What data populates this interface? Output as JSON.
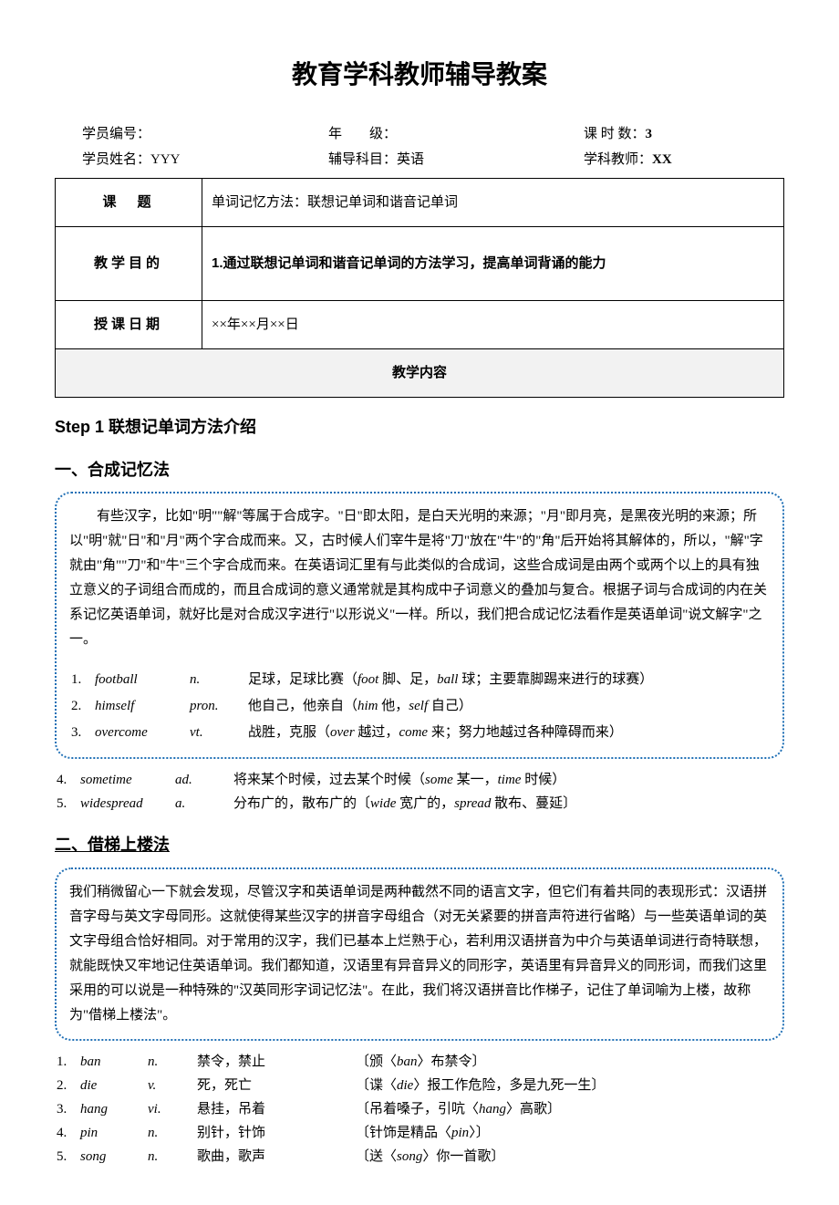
{
  "title": "教育学科教师辅导教案",
  "header": {
    "student_id_label": "学员编号：",
    "student_name_label": "学员姓名：",
    "student_name": "YYY",
    "grade_label": "年　　级：",
    "subject_label": "辅导科目：",
    "subject": "英语",
    "hours_label": "课 时 数：",
    "hours": "3",
    "teacher_label": "学科教师：",
    "teacher": "XX"
  },
  "meta": {
    "topic_label": "课　题",
    "topic": "单词记忆方法：联想记单词和谐音记单词",
    "goal_label": "教学目的",
    "goal": "1.通过联想记单词和谐音记单词的方法学习，提高单词背诵的能力",
    "date_label": "授课日期",
    "date": "××年××月××日",
    "content_header": "教学内容"
  },
  "step1": {
    "head_prefix": "Step 1",
    "head_text": " 联想记单词方法介绍"
  },
  "section1": {
    "head": "一、合成记忆法",
    "para": "有些汉字，比如\"明\"\"解\"等属于合成字。\"日\"即太阳，是白天光明的来源；\"月\"即月亮，是黑夜光明的来源；所以\"明\"就\"日\"和\"月\"两个字合成而来。又，古时候人们宰牛是将\"刀\"放在\"牛\"的\"角\"后开始将其解体的，所以，\"解\"字就由\"角\"\"刀\"和\"牛\"三个字合成而来。在英语词汇里有与此类似的合成词，这些合成词是由两个或两个以上的具有独立意义的子词组合而成的，而且合成词的意义通常就是其构成中子词意义的叠加与复合。根据子词与合成词的内在关系记忆英语单词，就好比是对合成汉字进行\"以形说义\"一样。所以，我们把合成记忆法看作是英语单词\"说文解字\"之一。",
    "vocab": [
      {
        "idx": "1.",
        "w": "football",
        "p": "n.",
        "d": "足球，足球比赛（<span class='it'>foot</span> 脚、足，<span class='it'>ball</span> 球；主要靠脚踢来进行的球赛）"
      },
      {
        "idx": "2.",
        "w": "himself",
        "p": "pron.",
        "d": "他自己，他亲自（<span class='it'>him</span> 他，<span class='it'>self</span> 自己）"
      },
      {
        "idx": "3.",
        "w": "overcome",
        "p": "vt.",
        "d": "战胜，克服（<span class='it'>over</span> 越过，<span class='it'>come</span> 来；努力地越过各种障碍而来）"
      },
      {
        "idx": "4.",
        "w": "sometime",
        "p": "ad.",
        "d": "将来某个时候，过去某个时候（<span class='it'>some</span> 某一，<span class='it'>time</span> 时候）"
      },
      {
        "idx": "5.",
        "w": "widespread",
        "p": "a.",
        "d": "分布广的，散布广的〔<span class='it'>wide</span> 宽广的，<span class='it'>spread</span> 散布、蔓延〕"
      }
    ]
  },
  "section2": {
    "head": "二、借梯上楼法",
    "para": "我们稍微留心一下就会发现，尽管汉字和英语单词是两种截然不同的语言文字，但它们有着共同的表现形式：汉语拼音字母与英文字母同形。这就使得某些汉字的拼音字母组合（对无关紧要的拼音声符进行省略）与一些英语单词的英文字母组合恰好相同。对于常用的汉字，我们已基本上烂熟于心，若利用汉语拼音为中介与英语单词进行奇特联想，就能既快又牢地记住英语单词。我们都知道，汉语里有异音异义的同形字，英语里有异音异义的同形词，而我们这里采用的可以说是一种特殊的\"汉英同形字词记忆法\"。在此，我们将汉语拼音比作梯子，记住了单词喻为上楼，故称为\"借梯上楼法\"。",
    "vocab": [
      {
        "idx": "1.",
        "w": "ban",
        "p": "n.",
        "d": "禁令，禁止",
        "n": "〔颁〈<span class='it'>ban</span>〉布禁令〕"
      },
      {
        "idx": "2.",
        "w": "die",
        "p": "v.",
        "d": "死，死亡",
        "n": "〔谍〈<span class='it'>die</span>〉报工作危险，多是九死一生〕"
      },
      {
        "idx": "3.",
        "w": "hang",
        "p": "vi.",
        "d": "悬挂，吊着",
        "n": "〔吊着嗓子，引吭〈<span class='it'>hang</span>〉高歌〕"
      },
      {
        "idx": "4.",
        "w": "pin",
        "p": "n.",
        "d": "别针，针饰",
        "n": "〔针饰是精品〈<span class='it'>pin</span>〉〕"
      },
      {
        "idx": "5.",
        "w": "song",
        "p": "n.",
        "d": "歌曲，歌声",
        "n": "〔送〈<span class='it'>song</span>〉你一首歌〕"
      }
    ]
  }
}
